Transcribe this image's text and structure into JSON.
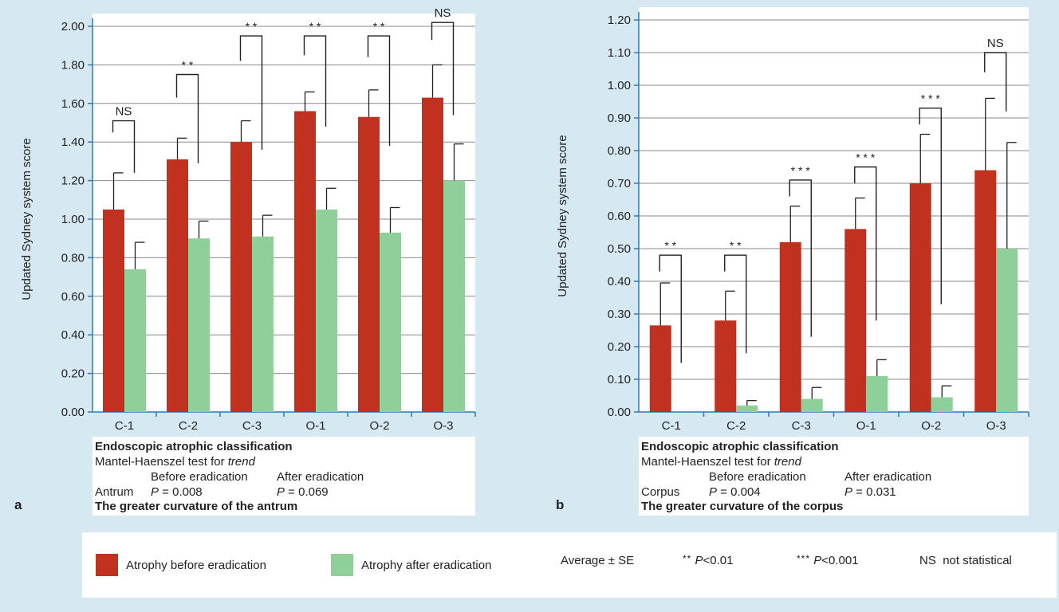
{
  "colors": {
    "before": "#c0321f",
    "after": "#8ecf9a",
    "background": "#d6e9f2"
  },
  "chart_data": [
    {
      "type": "bar",
      "panel": "a",
      "ylabel": "Updated Sydney system score",
      "ylim": [
        0,
        2.0
      ],
      "yticks": [
        "0.00",
        "0.20",
        "0.40",
        "0.60",
        "0.80",
        "1.00",
        "1.20",
        "1.40",
        "1.60",
        "1.80",
        "2.00"
      ],
      "categories": [
        "C-1",
        "C-2",
        "C-3",
        "O-1",
        "O-2",
        "O-3"
      ],
      "grid": true,
      "series": [
        {
          "name": "Atrophy before eradication",
          "values": [
            1.05,
            1.31,
            1.4,
            1.56,
            1.53,
            1.63
          ],
          "errors": [
            0.19,
            0.11,
            0.11,
            0.1,
            0.14,
            0.17
          ]
        },
        {
          "name": "Atrophy after eradication",
          "values": [
            0.74,
            0.9,
            0.91,
            1.05,
            0.93,
            1.2
          ],
          "errors": [
            0.14,
            0.09,
            0.11,
            0.11,
            0.13,
            0.19
          ]
        }
      ],
      "significance": [
        "NS",
        "**",
        "**",
        "**",
        "**",
        "NS"
      ],
      "sig_geometry": [
        {
          "top": 1.51,
          "leftLow": 1.45,
          "rightLow": 1.24
        },
        {
          "top": 1.75,
          "leftLow": 1.63,
          "rightLow": 1.29
        },
        {
          "top": 1.95,
          "leftLow": 1.82,
          "rightLow": 1.36
        },
        {
          "top": 1.95,
          "leftLow": 1.85,
          "rightLow": 1.48
        },
        {
          "top": 1.95,
          "leftLow": 1.84,
          "rightLow": 1.38
        },
        {
          "top": 2.02,
          "leftLow": 1.93,
          "rightLow": 1.54
        }
      ]
    },
    {
      "type": "bar",
      "panel": "b",
      "ylabel": "Updated Sydney system score",
      "ylim": [
        0,
        1.2
      ],
      "yticks": [
        "0.00",
        "0.10",
        "0.20",
        "0.30",
        "0.40",
        "0.50",
        "0.60",
        "0.70",
        "0.80",
        "0.90",
        "1.00",
        "1.10",
        "1.20"
      ],
      "categories": [
        "C-1",
        "C-2",
        "C-3",
        "O-1",
        "O-2",
        "O-3"
      ],
      "grid": true,
      "series": [
        {
          "name": "Atrophy before eradication",
          "values": [
            0.265,
            0.28,
            0.52,
            0.56,
            0.7,
            0.74
          ],
          "errors": [
            0.13,
            0.09,
            0.11,
            0.095,
            0.15,
            0.22
          ]
        },
        {
          "name": "Atrophy after eradication",
          "values": [
            0.0,
            0.02,
            0.04,
            0.11,
            0.045,
            0.5
          ],
          "errors": [
            0.0,
            0.015,
            0.035,
            0.05,
            0.035,
            0.325
          ]
        }
      ],
      "significance": [
        "**",
        "**",
        "***",
        "***",
        "***",
        "NS"
      ],
      "sig_geometry": [
        {
          "top": 0.48,
          "leftLow": 0.43,
          "rightLow": 0.15
        },
        {
          "top": 0.48,
          "leftLow": 0.43,
          "rightLow": 0.18
        },
        {
          "top": 0.71,
          "leftLow": 0.66,
          "rightLow": 0.23
        },
        {
          "top": 0.75,
          "leftLow": 0.7,
          "rightLow": 0.28
        },
        {
          "top": 0.93,
          "leftLow": 0.88,
          "rightLow": 0.33
        },
        {
          "top": 1.1,
          "leftLow": 1.04,
          "rightLow": 0.92
        }
      ]
    }
  ],
  "captions": {
    "a": {
      "letter": "a",
      "title": "Endoscopic atrophic classification",
      "test_prefix": "Mantel-Haenszel test for ",
      "test_italic": "trend",
      "col_before": "Before eradication",
      "col_after": "After eradication",
      "site": "Antrum",
      "p_label": "P",
      "p_before": " = 0.008",
      "p_after": " = 0.069",
      "subtitle": "The greater curvature of the antrum"
    },
    "b": {
      "letter": "b",
      "title": "Endoscopic atrophic classification",
      "test_prefix": "Mantel-Haenszel test for ",
      "test_italic": "trend",
      "col_before": "Before eradication",
      "col_after": "After eradication",
      "site": "Corpus",
      "p_label": "P",
      "p_before": " = 0.004",
      "p_after": " = 0.031",
      "subtitle": "The greater curvature of the corpus"
    }
  },
  "legend": {
    "before": "Atrophy before eradication",
    "after": "Atrophy after eradication",
    "average": "Average ± SE",
    "two_star": "**",
    "two_star_text": "<0.01",
    "three_star": "***",
    "three_star_text": "<0.001",
    "p_label": "P",
    "ns": "NS",
    "ns_text": "not statistical"
  }
}
